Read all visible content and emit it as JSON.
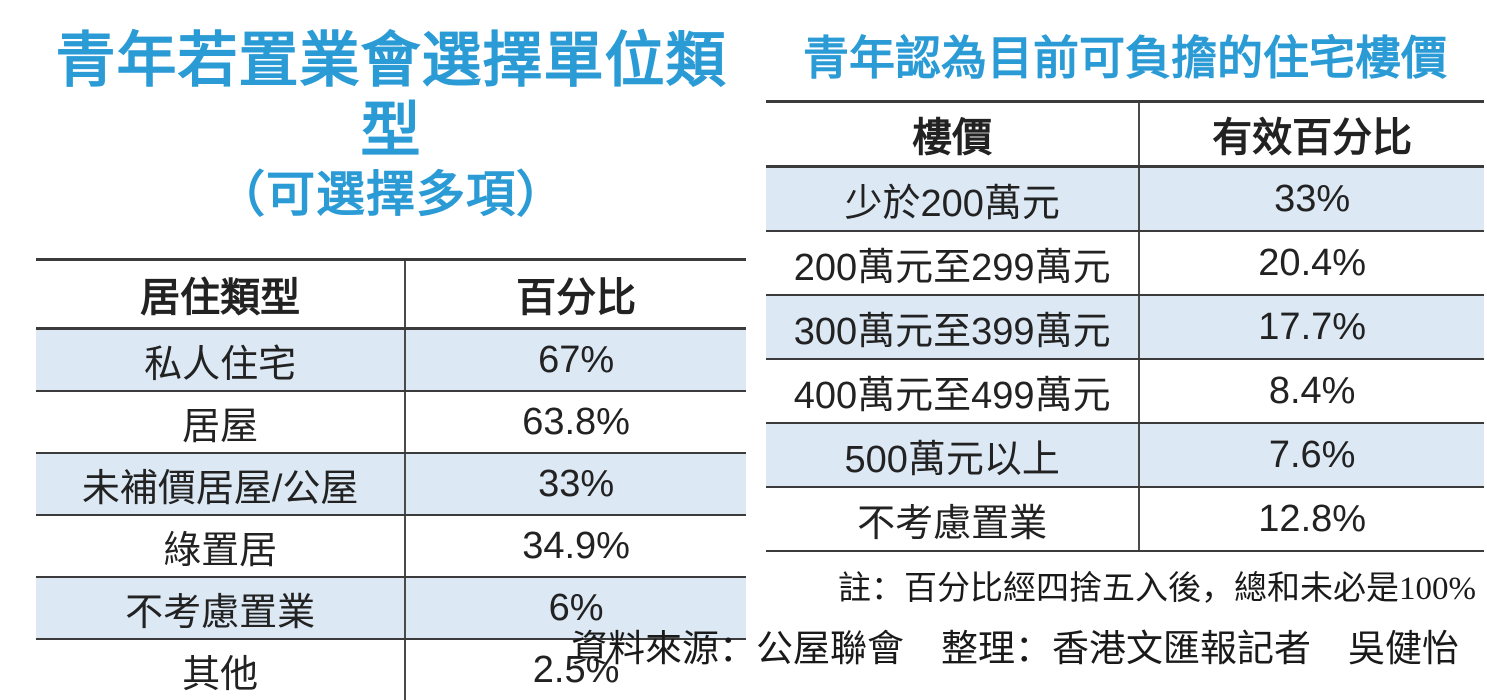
{
  "page": {
    "background": "#ffffff",
    "accent_blue": "#2b9bd6",
    "row_highlight": "#dce8f4",
    "rule_color": "#3b3b3b",
    "text_color": "#1e1e1e"
  },
  "left": {
    "title_line1": "青年若置業會選擇單位類型",
    "title_line2": "（可選擇多項）",
    "table": {
      "headers": [
        "居住類型",
        "百分比"
      ],
      "rows": [
        [
          "私人住宅",
          "67%"
        ],
        [
          "居屋",
          "63.8%"
        ],
        [
          "未補價居屋/公屋",
          "33%"
        ],
        [
          "綠置居",
          "34.9%"
        ],
        [
          "不考慮置業",
          "6%"
        ],
        [
          "其他",
          "2.5%"
        ]
      ]
    }
  },
  "right": {
    "title": "青年認為目前可負擔的住宅樓價",
    "table": {
      "headers": [
        "樓價",
        "有效百分比"
      ],
      "rows": [
        [
          "少於200萬元",
          "33%"
        ],
        [
          "200萬元至299萬元",
          "20.4%"
        ],
        [
          "300萬元至399萬元",
          "17.7%"
        ],
        [
          "400萬元至499萬元",
          "8.4%"
        ],
        [
          "500萬元以上",
          "7.6%"
        ],
        [
          "不考慮置業",
          "12.8%"
        ]
      ]
    },
    "note": "註：百分比經四捨五入後，總和未必是100%"
  },
  "footer": {
    "source": "資料來源：公屋聯會　整理：香港文匯報記者　吳健怡"
  },
  "chart_data": [
    {
      "type": "table",
      "title": "青年若置業會選擇單位類型（可選擇多項）",
      "columns": [
        "居住類型",
        "百分比"
      ],
      "rows": [
        [
          "私人住宅",
          "67%"
        ],
        [
          "居屋",
          "63.8%"
        ],
        [
          "未補價居屋/公屋",
          "33%"
        ],
        [
          "綠置居",
          "34.9%"
        ],
        [
          "不考慮置業",
          "6%"
        ],
        [
          "其他",
          "2.5%"
        ]
      ]
    },
    {
      "type": "table",
      "title": "青年認為目前可負擔的住宅樓價",
      "columns": [
        "樓價",
        "有效百分比"
      ],
      "rows": [
        [
          "少於200萬元",
          "33%"
        ],
        [
          "200萬元至299萬元",
          "20.4%"
        ],
        [
          "300萬元至399萬元",
          "17.7%"
        ],
        [
          "400萬元至499萬元",
          "8.4%"
        ],
        [
          "500萬元以上",
          "7.6%"
        ],
        [
          "不考慮置業",
          "12.8%"
        ]
      ],
      "note": "註：百分比經四捨五入後，總和未必是100%"
    }
  ]
}
